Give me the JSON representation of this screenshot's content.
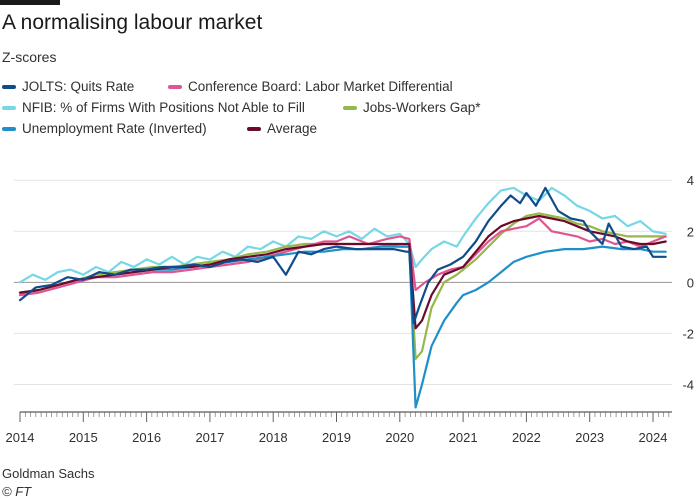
{
  "header": {
    "title": "A normalising labour market",
    "subtitle": "Z-scores"
  },
  "footer": {
    "source": "Goldman Sachs",
    "copyright": "© FT"
  },
  "chart_data": {
    "type": "line",
    "title": "A normalising labour market",
    "subtitle": "Z-scores",
    "xlabel": "",
    "ylabel": "",
    "xlim": [
      2014.0,
      2024.3
    ],
    "ylim": [
      -5,
      4.4
    ],
    "x_ticks": [
      "2014",
      "2015",
      "2016",
      "2017",
      "2018",
      "2019",
      "2020",
      "2021",
      "2022",
      "2023",
      "2024"
    ],
    "y_ticks": [
      4,
      2,
      0,
      -2,
      -4
    ],
    "y_tick_labels": [
      "4",
      "2",
      "0",
      "-2",
      "-4"
    ],
    "grid": "horizontal",
    "legend_position": "top",
    "series": [
      {
        "name": "JOLTS: Quits Rate",
        "color": "#0f4c8a",
        "points": [
          [
            2014.0,
            -0.7
          ],
          [
            2014.25,
            -0.2
          ],
          [
            2014.5,
            -0.1
          ],
          [
            2014.75,
            0.2
          ],
          [
            2015.0,
            0.1
          ],
          [
            2015.25,
            0.4
          ],
          [
            2015.5,
            0.3
          ],
          [
            2015.75,
            0.5
          ],
          [
            2016.0,
            0.5
          ],
          [
            2016.25,
            0.6
          ],
          [
            2016.5,
            0.6
          ],
          [
            2016.75,
            0.7
          ],
          [
            2017.0,
            0.6
          ],
          [
            2017.25,
            0.8
          ],
          [
            2017.5,
            0.9
          ],
          [
            2017.75,
            0.8
          ],
          [
            2018.0,
            1.0
          ],
          [
            2018.2,
            0.3
          ],
          [
            2018.4,
            1.2
          ],
          [
            2018.6,
            1.1
          ],
          [
            2018.8,
            1.3
          ],
          [
            2019.0,
            1.4
          ],
          [
            2019.3,
            1.3
          ],
          [
            2019.6,
            1.3
          ],
          [
            2019.9,
            1.3
          ],
          [
            2020.1,
            1.2
          ],
          [
            2020.15,
            1.2
          ],
          [
            2020.22,
            -1.6
          ],
          [
            2020.3,
            -1.0
          ],
          [
            2020.45,
            0.0
          ],
          [
            2020.6,
            0.5
          ],
          [
            2020.8,
            0.7
          ],
          [
            2021.0,
            1.0
          ],
          [
            2021.2,
            1.6
          ],
          [
            2021.4,
            2.4
          ],
          [
            2021.6,
            3.0
          ],
          [
            2021.75,
            3.4
          ],
          [
            2021.9,
            3.1
          ],
          [
            2022.0,
            3.5
          ],
          [
            2022.15,
            3.0
          ],
          [
            2022.3,
            3.7
          ],
          [
            2022.5,
            2.8
          ],
          [
            2022.7,
            2.5
          ],
          [
            2022.9,
            2.4
          ],
          [
            2023.0,
            2.0
          ],
          [
            2023.2,
            1.5
          ],
          [
            2023.3,
            2.3
          ],
          [
            2023.5,
            1.4
          ],
          [
            2023.7,
            1.3
          ],
          [
            2023.9,
            1.4
          ],
          [
            2024.0,
            1.0
          ],
          [
            2024.2,
            1.0
          ]
        ]
      },
      {
        "name": "Conference Board: Labor Market Differential",
        "color": "#e0558f",
        "points": [
          [
            2014.0,
            -0.5
          ],
          [
            2014.3,
            -0.4
          ],
          [
            2014.6,
            -0.2
          ],
          [
            2014.9,
            0.0
          ],
          [
            2015.2,
            0.2
          ],
          [
            2015.5,
            0.2
          ],
          [
            2015.8,
            0.3
          ],
          [
            2016.1,
            0.4
          ],
          [
            2016.4,
            0.4
          ],
          [
            2016.7,
            0.5
          ],
          [
            2017.0,
            0.6
          ],
          [
            2017.3,
            0.7
          ],
          [
            2017.6,
            0.8
          ],
          [
            2017.9,
            1.0
          ],
          [
            2018.2,
            1.2
          ],
          [
            2018.5,
            1.4
          ],
          [
            2018.8,
            1.6
          ],
          [
            2019.0,
            1.6
          ],
          [
            2019.2,
            1.8
          ],
          [
            2019.5,
            1.5
          ],
          [
            2019.8,
            1.7
          ],
          [
            2020.0,
            1.8
          ],
          [
            2020.15,
            1.7
          ],
          [
            2020.25,
            -0.3
          ],
          [
            2020.4,
            0.0
          ],
          [
            2020.6,
            0.3
          ],
          [
            2020.8,
            0.5
          ],
          [
            2021.0,
            0.6
          ],
          [
            2021.2,
            1.1
          ],
          [
            2021.4,
            1.6
          ],
          [
            2021.6,
            2.0
          ],
          [
            2021.8,
            2.1
          ],
          [
            2022.0,
            2.2
          ],
          [
            2022.2,
            2.5
          ],
          [
            2022.4,
            2.0
          ],
          [
            2022.6,
            1.9
          ],
          [
            2022.8,
            1.8
          ],
          [
            2023.0,
            1.6
          ],
          [
            2023.2,
            1.7
          ],
          [
            2023.4,
            1.5
          ],
          [
            2023.6,
            1.6
          ],
          [
            2023.8,
            1.4
          ],
          [
            2024.0,
            1.6
          ],
          [
            2024.2,
            1.8
          ]
        ]
      },
      {
        "name": "NFIB: % of Firms With Positions Not Able to Fill",
        "color": "#77d7e6",
        "points": [
          [
            2014.0,
            0.0
          ],
          [
            2014.2,
            0.3
          ],
          [
            2014.4,
            0.1
          ],
          [
            2014.6,
            0.4
          ],
          [
            2014.8,
            0.5
          ],
          [
            2015.0,
            0.3
          ],
          [
            2015.2,
            0.6
          ],
          [
            2015.4,
            0.4
          ],
          [
            2015.6,
            0.8
          ],
          [
            2015.8,
            0.6
          ],
          [
            2016.0,
            0.9
          ],
          [
            2016.2,
            0.7
          ],
          [
            2016.4,
            1.0
          ],
          [
            2016.6,
            0.7
          ],
          [
            2016.8,
            1.0
          ],
          [
            2017.0,
            0.9
          ],
          [
            2017.2,
            1.2
          ],
          [
            2017.4,
            1.0
          ],
          [
            2017.6,
            1.4
          ],
          [
            2017.8,
            1.3
          ],
          [
            2018.0,
            1.6
          ],
          [
            2018.2,
            1.4
          ],
          [
            2018.4,
            1.8
          ],
          [
            2018.6,
            1.7
          ],
          [
            2018.8,
            2.0
          ],
          [
            2019.0,
            1.8
          ],
          [
            2019.2,
            2.0
          ],
          [
            2019.4,
            1.7
          ],
          [
            2019.6,
            2.1
          ],
          [
            2019.8,
            1.8
          ],
          [
            2020.0,
            1.9
          ],
          [
            2020.15,
            1.5
          ],
          [
            2020.25,
            0.6
          ],
          [
            2020.35,
            0.9
          ],
          [
            2020.5,
            1.3
          ],
          [
            2020.7,
            1.6
          ],
          [
            2020.9,
            1.4
          ],
          [
            2021.0,
            1.8
          ],
          [
            2021.2,
            2.5
          ],
          [
            2021.4,
            3.1
          ],
          [
            2021.6,
            3.6
          ],
          [
            2021.8,
            3.7
          ],
          [
            2022.0,
            3.4
          ],
          [
            2022.2,
            3.2
          ],
          [
            2022.4,
            3.7
          ],
          [
            2022.6,
            3.4
          ],
          [
            2022.8,
            3.0
          ],
          [
            2023.0,
            2.8
          ],
          [
            2023.2,
            2.5
          ],
          [
            2023.4,
            2.6
          ],
          [
            2023.6,
            2.2
          ],
          [
            2023.8,
            2.4
          ],
          [
            2024.0,
            2.0
          ],
          [
            2024.2,
            1.9
          ]
        ]
      },
      {
        "name": "Jobs-Workers Gap*",
        "color": "#96b84a",
        "points": [
          [
            2014.0,
            -0.5
          ],
          [
            2014.3,
            -0.3
          ],
          [
            2014.6,
            -0.1
          ],
          [
            2014.9,
            0.1
          ],
          [
            2015.2,
            0.3
          ],
          [
            2015.5,
            0.4
          ],
          [
            2015.8,
            0.5
          ],
          [
            2016.1,
            0.6
          ],
          [
            2016.4,
            0.6
          ],
          [
            2016.7,
            0.7
          ],
          [
            2017.0,
            0.8
          ],
          [
            2017.3,
            0.9
          ],
          [
            2017.6,
            1.1
          ],
          [
            2017.9,
            1.2
          ],
          [
            2018.2,
            1.4
          ],
          [
            2018.5,
            1.5
          ],
          [
            2018.8,
            1.5
          ],
          [
            2019.1,
            1.5
          ],
          [
            2019.4,
            1.5
          ],
          [
            2019.7,
            1.5
          ],
          [
            2020.0,
            1.4
          ],
          [
            2020.15,
            1.4
          ],
          [
            2020.25,
            -3.0
          ],
          [
            2020.35,
            -2.7
          ],
          [
            2020.5,
            -1.0
          ],
          [
            2020.7,
            0.0
          ],
          [
            2020.9,
            0.3
          ],
          [
            2021.0,
            0.5
          ],
          [
            2021.2,
            0.9
          ],
          [
            2021.4,
            1.4
          ],
          [
            2021.6,
            1.9
          ],
          [
            2021.8,
            2.3
          ],
          [
            2022.0,
            2.6
          ],
          [
            2022.2,
            2.7
          ],
          [
            2022.4,
            2.6
          ],
          [
            2022.6,
            2.5
          ],
          [
            2022.8,
            2.3
          ],
          [
            2023.0,
            2.2
          ],
          [
            2023.2,
            2.0
          ],
          [
            2023.4,
            1.9
          ],
          [
            2023.6,
            1.8
          ],
          [
            2023.8,
            1.8
          ],
          [
            2024.0,
            1.8
          ],
          [
            2024.2,
            1.8
          ]
        ]
      },
      {
        "name": "Unemployment Rate (Inverted)",
        "color": "#1f8fc9",
        "points": [
          [
            2014.0,
            -0.4
          ],
          [
            2014.3,
            -0.3
          ],
          [
            2014.6,
            -0.1
          ],
          [
            2014.9,
            0.1
          ],
          [
            2015.2,
            0.2
          ],
          [
            2015.5,
            0.3
          ],
          [
            2015.8,
            0.4
          ],
          [
            2016.1,
            0.5
          ],
          [
            2016.4,
            0.5
          ],
          [
            2016.7,
            0.6
          ],
          [
            2017.0,
            0.7
          ],
          [
            2017.3,
            0.8
          ],
          [
            2017.6,
            0.9
          ],
          [
            2017.9,
            1.0
          ],
          [
            2018.2,
            1.1
          ],
          [
            2018.5,
            1.2
          ],
          [
            2018.8,
            1.2
          ],
          [
            2019.1,
            1.3
          ],
          [
            2019.4,
            1.3
          ],
          [
            2019.7,
            1.4
          ],
          [
            2020.0,
            1.4
          ],
          [
            2020.15,
            1.4
          ],
          [
            2020.25,
            -4.9
          ],
          [
            2020.35,
            -4.0
          ],
          [
            2020.5,
            -2.5
          ],
          [
            2020.7,
            -1.5
          ],
          [
            2020.9,
            -0.8
          ],
          [
            2021.0,
            -0.5
          ],
          [
            2021.2,
            -0.3
          ],
          [
            2021.4,
            0.0
          ],
          [
            2021.6,
            0.4
          ],
          [
            2021.8,
            0.8
          ],
          [
            2022.0,
            1.0
          ],
          [
            2022.3,
            1.2
          ],
          [
            2022.6,
            1.3
          ],
          [
            2022.9,
            1.3
          ],
          [
            2023.2,
            1.4
          ],
          [
            2023.5,
            1.3
          ],
          [
            2023.8,
            1.3
          ],
          [
            2024.0,
            1.2
          ],
          [
            2024.2,
            1.2
          ]
        ]
      },
      {
        "name": "Average",
        "color": "#6b0b2b",
        "points": [
          [
            2014.0,
            -0.4
          ],
          [
            2014.3,
            -0.3
          ],
          [
            2014.6,
            -0.1
          ],
          [
            2014.9,
            0.1
          ],
          [
            2015.2,
            0.2
          ],
          [
            2015.5,
            0.3
          ],
          [
            2015.8,
            0.4
          ],
          [
            2016.1,
            0.5
          ],
          [
            2016.4,
            0.6
          ],
          [
            2016.7,
            0.6
          ],
          [
            2017.0,
            0.7
          ],
          [
            2017.3,
            0.9
          ],
          [
            2017.6,
            1.0
          ],
          [
            2017.9,
            1.1
          ],
          [
            2018.2,
            1.3
          ],
          [
            2018.5,
            1.4
          ],
          [
            2018.8,
            1.5
          ],
          [
            2019.1,
            1.5
          ],
          [
            2019.4,
            1.5
          ],
          [
            2019.7,
            1.5
          ],
          [
            2020.0,
            1.5
          ],
          [
            2020.15,
            1.5
          ],
          [
            2020.25,
            -1.8
          ],
          [
            2020.35,
            -1.5
          ],
          [
            2020.5,
            -0.5
          ],
          [
            2020.7,
            0.3
          ],
          [
            2020.9,
            0.5
          ],
          [
            2021.0,
            0.6
          ],
          [
            2021.2,
            1.2
          ],
          [
            2021.4,
            1.8
          ],
          [
            2021.6,
            2.2
          ],
          [
            2021.8,
            2.4
          ],
          [
            2022.0,
            2.5
          ],
          [
            2022.2,
            2.6
          ],
          [
            2022.4,
            2.5
          ],
          [
            2022.6,
            2.4
          ],
          [
            2022.8,
            2.2
          ],
          [
            2023.0,
            2.0
          ],
          [
            2023.2,
            1.9
          ],
          [
            2023.4,
            1.8
          ],
          [
            2023.6,
            1.6
          ],
          [
            2023.8,
            1.5
          ],
          [
            2024.0,
            1.5
          ],
          [
            2024.2,
            1.6
          ]
        ]
      }
    ]
  }
}
